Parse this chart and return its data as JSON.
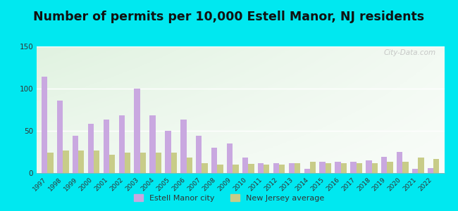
{
  "title": "Number of permits per 10,000 Estell Manor, NJ residents",
  "years": [
    1997,
    1998,
    1999,
    2000,
    2001,
    2002,
    2003,
    2004,
    2005,
    2006,
    2007,
    2008,
    2009,
    2010,
    2011,
    2012,
    2013,
    2014,
    2015,
    2016,
    2017,
    2018,
    2019,
    2020,
    2021,
    2022
  ],
  "city_values": [
    114,
    86,
    44,
    58,
    63,
    68,
    100,
    68,
    50,
    63,
    44,
    30,
    35,
    18,
    12,
    12,
    12,
    5,
    13,
    13,
    13,
    15,
    19,
    25,
    5,
    6
  ],
  "nj_values": [
    24,
    27,
    27,
    27,
    22,
    24,
    24,
    24,
    24,
    18,
    12,
    10,
    10,
    11,
    10,
    10,
    12,
    13,
    12,
    12,
    12,
    12,
    13,
    13,
    18,
    17
  ],
  "city_color": "#c9a8e0",
  "nj_color": "#c8cc88",
  "outer_background": "#00e8f0",
  "ylim": [
    0,
    150
  ],
  "yticks": [
    0,
    50,
    100,
    150
  ],
  "legend_city": "Estell Manor city",
  "legend_nj": "New Jersey average",
  "bar_width": 0.38,
  "title_fontsize": 12.5,
  "watermark": "City-Data.com"
}
